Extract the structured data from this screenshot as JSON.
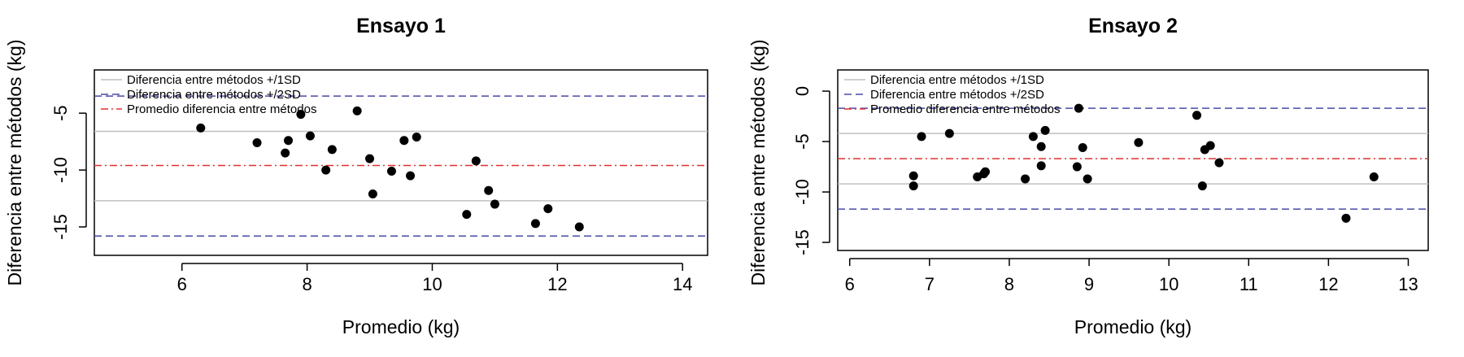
{
  "chart_data": [
    {
      "type": "scatter",
      "title": "Ensayo 1",
      "xlabel": "Promedio (kg)",
      "ylabel": "Diferencia entre métodos (kg)",
      "xlim": [
        4.6,
        14.4
      ],
      "ylim": [
        -17.5,
        -1.2
      ],
      "xticks": [
        6,
        8,
        10,
        12,
        14
      ],
      "yticks": [
        -5,
        -10,
        -15
      ],
      "grid": false,
      "legend_position": "top-left",
      "legend": [
        {
          "label": "Diferencia entre métodos +/1SD",
          "style": "solid",
          "color": "#c0c0c0"
        },
        {
          "label": "Diferencia entre métodos +/2SD",
          "style": "dashed",
          "color": "#4a4aa6"
        },
        {
          "label": "Promedio diferencia entre métodos",
          "style": "dashdot",
          "color": "#e03030"
        }
      ],
      "reference_lines": [
        {
          "y": -3.5,
          "style": "dashed",
          "color": "#4a4aa6"
        },
        {
          "y": -6.6,
          "style": "solid",
          "color": "#c0c0c0"
        },
        {
          "y": -9.6,
          "style": "dashdot",
          "color": "#e03030"
        },
        {
          "y": -12.7,
          "style": "solid",
          "color": "#c0c0c0"
        },
        {
          "y": -15.8,
          "style": "dashed",
          "color": "#4a4aa6"
        }
      ],
      "points": [
        {
          "x": 6.3,
          "y": -6.3
        },
        {
          "x": 7.2,
          "y": -7.6
        },
        {
          "x": 7.65,
          "y": -8.5
        },
        {
          "x": 7.7,
          "y": -7.4
        },
        {
          "x": 7.9,
          "y": -5.1
        },
        {
          "x": 8.05,
          "y": -7.0
        },
        {
          "x": 8.3,
          "y": -10.0
        },
        {
          "x": 8.4,
          "y": -8.2
        },
        {
          "x": 8.8,
          "y": -4.8
        },
        {
          "x": 9.0,
          "y": -9.0
        },
        {
          "x": 9.05,
          "y": -12.1
        },
        {
          "x": 9.35,
          "y": -10.1
        },
        {
          "x": 9.55,
          "y": -7.4
        },
        {
          "x": 9.65,
          "y": -10.5
        },
        {
          "x": 9.75,
          "y": -7.1
        },
        {
          "x": 10.55,
          "y": -13.9
        },
        {
          "x": 10.7,
          "y": -9.2
        },
        {
          "x": 10.9,
          "y": -11.8
        },
        {
          "x": 11.0,
          "y": -13.0
        },
        {
          "x": 11.65,
          "y": -14.7
        },
        {
          "x": 11.85,
          "y": -13.4
        },
        {
          "x": 12.35,
          "y": -15.0
        }
      ]
    },
    {
      "type": "scatter",
      "title": "Ensayo 2",
      "xlabel": "Promedio (kg)",
      "ylabel": "Diferencia entre métodos (kg)",
      "xlim": [
        5.85,
        13.25
      ],
      "ylim": [
        -15.8,
        2.1
      ],
      "xticks": [
        6,
        7,
        8,
        9,
        10,
        11,
        12,
        13
      ],
      "yticks": [
        0,
        -5,
        -10,
        -15
      ],
      "grid": false,
      "legend_position": "top-left",
      "legend": [
        {
          "label": "Diferencia entre métodos +/1SD",
          "style": "solid",
          "color": "#c0c0c0"
        },
        {
          "label": "Diferencia entre métodos +/2SD",
          "style": "dashed",
          "color": "#4a4aa6"
        },
        {
          "label": "Promedio diferencia entre métodos",
          "style": "dashdot",
          "color": "#e03030"
        }
      ],
      "reference_lines": [
        {
          "y": -1.7,
          "style": "dashed",
          "color": "#4a4aa6"
        },
        {
          "y": -4.2,
          "style": "solid",
          "color": "#c0c0c0"
        },
        {
          "y": -6.7,
          "style": "dashdot",
          "color": "#e03030"
        },
        {
          "y": -9.2,
          "style": "solid",
          "color": "#c0c0c0"
        },
        {
          "y": -11.7,
          "style": "dashed",
          "color": "#4a4aa6"
        }
      ],
      "points": [
        {
          "x": 6.8,
          "y": -8.4
        },
        {
          "x": 6.8,
          "y": -9.4
        },
        {
          "x": 6.9,
          "y": -4.5
        },
        {
          "x": 7.25,
          "y": -4.2
        },
        {
          "x": 7.6,
          "y": -8.5
        },
        {
          "x": 7.68,
          "y": -8.2
        },
        {
          "x": 7.7,
          "y": -8.0
        },
        {
          "x": 8.2,
          "y": -8.7
        },
        {
          "x": 8.3,
          "y": -4.5
        },
        {
          "x": 8.4,
          "y": -5.5
        },
        {
          "x": 8.4,
          "y": -7.4
        },
        {
          "x": 8.45,
          "y": -3.9
        },
        {
          "x": 8.85,
          "y": -7.5
        },
        {
          "x": 8.87,
          "y": -1.7
        },
        {
          "x": 8.92,
          "y": -5.6
        },
        {
          "x": 8.98,
          "y": -8.7
        },
        {
          "x": 9.62,
          "y": -5.1
        },
        {
          "x": 10.35,
          "y": -2.4
        },
        {
          "x": 10.42,
          "y": -9.4
        },
        {
          "x": 10.45,
          "y": -5.8
        },
        {
          "x": 10.52,
          "y": -5.4
        },
        {
          "x": 10.63,
          "y": -7.1
        },
        {
          "x": 12.22,
          "y": -12.6
        },
        {
          "x": 12.57,
          "y": -8.5
        }
      ]
    }
  ]
}
